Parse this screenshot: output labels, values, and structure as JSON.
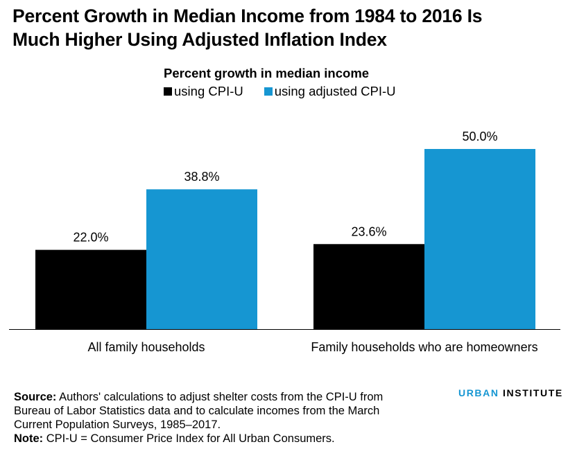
{
  "title_lines": [
    "Percent Growth in Median Income from 1984 to 2016 Is",
    "Much Higher Using Adjusted Inflation Index"
  ],
  "legend": {
    "title": "Percent growth in median income",
    "items": [
      {
        "label": "using CPI-U",
        "color": "#000000"
      },
      {
        "label": "using adjusted CPI-U",
        "color": "#1696d2"
      }
    ]
  },
  "chart_data": {
    "type": "bar",
    "categories": [
      "All family households",
      "Family households who are homeowners"
    ],
    "series": [
      {
        "name": "using CPI-U",
        "values": [
          22.0,
          23.6
        ],
        "color": "#000000",
        "labels": [
          "22.0%",
          "23.6%"
        ]
      },
      {
        "name": "using adjusted CPI-U",
        "values": [
          38.8,
          50.0
        ],
        "color": "#1696d2",
        "labels": [
          "38.8%",
          "50.0%"
        ]
      }
    ],
    "ylim": [
      0,
      50
    ],
    "grid": false,
    "legend_position": "top"
  },
  "footnotes": {
    "source_label": "Source:",
    "source_text": " Authors' calculations to adjust shelter costs from the CPI-U from Bureau of Labor Statistics data and to calculate incomes from the March Current Population Surveys, 1985–2017.",
    "note_label": "Note:",
    "note_text": " CPI-U = Consumer Price Index for All Urban Consumers."
  },
  "logo": {
    "part1": "URBAN",
    "part2": " INSTITUTE"
  }
}
